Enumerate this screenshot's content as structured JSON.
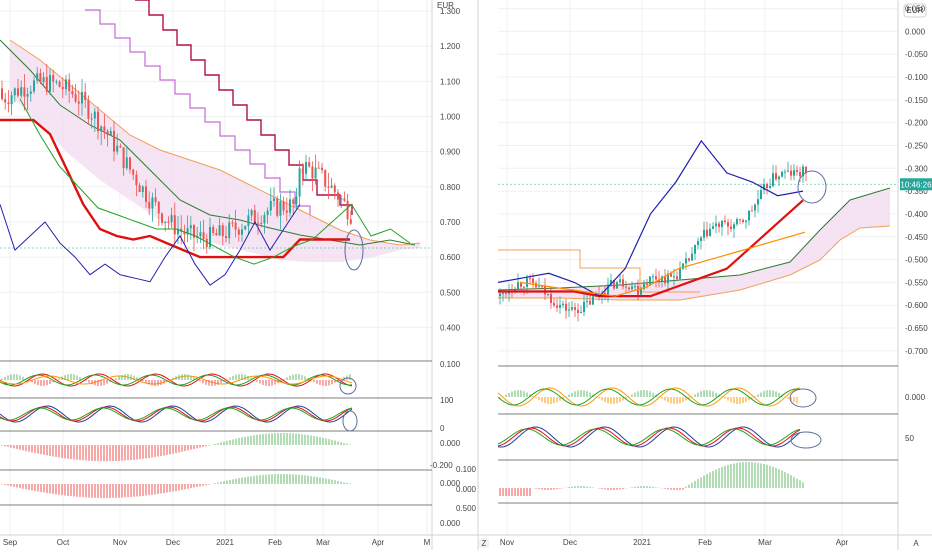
{
  "chart_data": [
    {
      "type": "line",
      "panel": "left-main",
      "currency": "EUR",
      "x_ticks": [
        "Sep",
        "Oct",
        "Nov",
        "Dec",
        "2021",
        "Feb",
        "Mar",
        "Apr",
        "M"
      ],
      "y_ticks": [
        "1.300",
        "1.200",
        "1.100",
        "1.000",
        "0.900",
        "0.800",
        "0.700",
        "0.600",
        "0.500",
        "0.400"
      ],
      "ylim": [
        0.35,
        1.32
      ],
      "series": [
        {
          "values": [
            0.99,
            0.99,
            0.99,
            0.95,
            0.85,
            0.75,
            0.68,
            0.66,
            0.65,
            0.66,
            0.64,
            0.62,
            0.6,
            0.6,
            0.6,
            0.6,
            0.6,
            0.6,
            0.65,
            0.65,
            0.65,
            0.65
          ],
          "color": "#e01010"
        },
        {
          "values": [
            0.75,
            0.62,
            0.66,
            0.7,
            0.64,
            0.6,
            0.55,
            0.58,
            0.55,
            0.54,
            0.53,
            0.6,
            0.66,
            0.58,
            0.52,
            0.55,
            0.62,
            0.7,
            0.62,
            0.75
          ],
          "color": "#2020b0"
        },
        {
          "values": [
            1.05,
            0.95,
            0.86,
            0.8,
            0.74,
            0.72,
            0.7,
            0.68,
            0.68,
            0.66,
            0.63,
            0.6,
            0.58,
            0.6,
            0.63,
            0.65,
            0.7,
            0.75,
            0.66,
            0.68,
            0.64
          ],
          "color": "#22a022"
        }
      ]
    },
    {
      "type": "line",
      "panel": "right-main",
      "currency": "EUR",
      "x_ticks": [
        "Nov",
        "Dec",
        "2021",
        "Feb",
        "Mar",
        "Apr"
      ],
      "y_ticks": [
        "0.050",
        "0.000",
        "-0.050",
        "-0.100",
        "-0.150",
        "-0.200",
        "-0.250",
        "-0.300",
        "-0.350",
        "-0.400",
        "-0.450",
        "-0.500",
        "-0.550",
        "-0.600",
        "-0.650",
        "-0.700"
      ],
      "ylim": [
        -0.72,
        0.06
      ],
      "price_badge": "10:46:26",
      "series": [
        {
          "values": [
            -0.57,
            -0.57,
            -0.57,
            -0.57,
            -0.58,
            -0.58,
            -0.58,
            -0.56,
            -0.54,
            -0.52,
            -0.47,
            -0.42,
            -0.37
          ],
          "color": "#e01010"
        },
        {
          "values": [
            -0.55,
            -0.54,
            -0.53,
            -0.55,
            -0.58,
            -0.52,
            -0.4,
            -0.33,
            -0.24,
            -0.31,
            -0.33,
            -0.36,
            -0.35
          ],
          "color": "#2020b0"
        },
        {
          "values": [
            -0.55,
            -0.56,
            -0.57,
            -0.58,
            -0.56,
            -0.52,
            -0.5,
            -0.48,
            -0.46,
            -0.44
          ],
          "color": "#ff8c00"
        }
      ]
    }
  ]
}
